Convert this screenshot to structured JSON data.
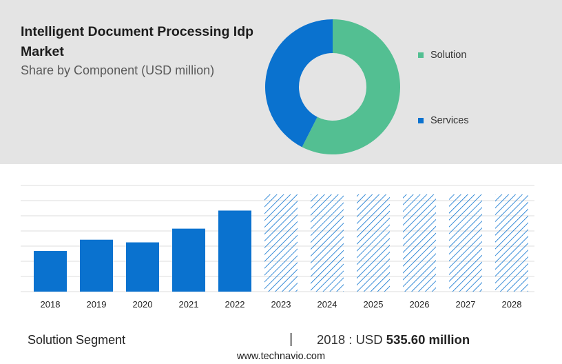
{
  "header": {
    "title": "Intelligent Document Processing Idp Market",
    "subtitle": "Share by Component (USD million)"
  },
  "chart_data": [
    {
      "type": "pie",
      "subtype": "donut",
      "labels": [
        "Solution",
        "Services"
      ],
      "values": [
        57.5,
        42.5
      ],
      "colors": [
        "#53bf92",
        "#0a72cf"
      ],
      "legend": "right"
    },
    {
      "type": "bar",
      "categories": [
        "2018",
        "2019",
        "2020",
        "2021",
        "2022",
        "2023",
        "2024",
        "2025",
        "2026",
        "2027",
        "2028"
      ],
      "values": [
        535.6,
        684,
        649,
        830,
        1068,
        null,
        null,
        null,
        null,
        null,
        null
      ],
      "forecast": [
        "2023",
        "2024",
        "2025",
        "2026",
        "2027",
        "2028"
      ],
      "forecast_style": "hatched",
      "ylim": [
        0,
        1390
      ],
      "grid": true,
      "bar_color": "#0a72cf"
    }
  ],
  "footer": {
    "segment": "Solution Segment",
    "separator": "|",
    "year_label": "2018 : USD",
    "value": "535.60 million",
    "source": "www.technavio.com"
  }
}
